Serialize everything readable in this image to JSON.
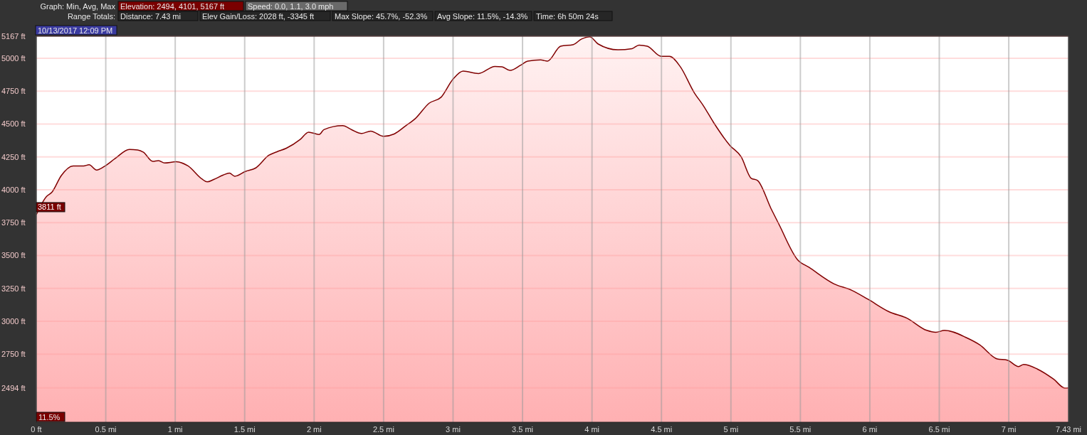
{
  "chart_data": {
    "type": "area",
    "annotations": [
      "Graph: Min, Avg, Max",
      "Elevation: 2494, 4101, 5167 ft",
      "Speed: 0.0, 1.1, 3.0 mph",
      "Range Totals:",
      "Distance: 7.43 mi",
      "Elev Gain/Loss: 2028 ft, -3345 ft",
      "Max Slope: 45.7%, -52.3%",
      "Avg Slope: 11.5%, -14.3%",
      "Time: 6h 50m 24s",
      "10/13/2017 12:09 PM",
      {
        "text": "3811 ft",
        "x": 0,
        "y": 3811
      },
      "11.5%"
    ],
    "x": [
      0,
      0.071,
      0.113,
      0.18,
      0.265,
      0.34,
      0.38,
      0.434,
      0.49,
      0.568,
      0.67,
      0.729,
      0.771,
      0.838,
      0.88,
      0.923,
      1.007,
      1.092,
      1.193,
      1.23,
      1.277,
      1.345,
      1.39,
      1.429,
      1.505,
      1.58,
      1.674,
      1.733,
      1.8,
      1.9,
      1.96,
      2.036,
      2.07,
      2.205,
      2.272,
      2.34,
      2.407,
      2.5,
      2.576,
      2.66,
      2.728,
      2.829,
      2.913,
      2.998,
      3.073,
      3.183,
      3.301,
      3.352,
      3.411,
      3.487,
      3.537,
      3.63,
      3.68,
      3.774,
      3.866,
      3.925,
      3.984,
      4.043,
      4.187,
      4.288,
      4.339,
      4.398,
      4.499,
      4.558,
      4.634,
      4.735,
      4.803,
      4.875,
      4.992,
      5.074,
      5.146,
      5.191,
      5.29,
      5.345,
      5.48,
      5.563,
      5.742,
      5.869,
      5.986,
      6.14,
      6.267,
      6.41,
      6.475,
      6.538,
      6.7,
      6.791,
      6.917,
      6.99,
      7.071,
      7.107,
      7.206,
      7.323,
      7.405,
      7.43
    ],
    "series": [
      {
        "color": "#800000",
        "values": [
          3811,
          3946,
          3982,
          4108,
          4181,
          4181,
          4190,
          4150,
          4177,
          4238,
          4307,
          4303,
          4285,
          4216,
          4222,
          4204,
          4213,
          4181,
          4081,
          4060,
          4078,
          4112,
          4127,
          4103,
          4139,
          4166,
          4262,
          4289,
          4316,
          4383,
          4438,
          4420,
          4457,
          4487,
          4455,
          4428,
          4446,
          4406,
          4424,
          4487,
          4541,
          4659,
          4703,
          4839,
          4902,
          4884,
          4938,
          4935,
          4907,
          4947,
          4978,
          4987,
          4978,
          5091,
          5104,
          5146,
          5163,
          5109,
          5064,
          5073,
          5100,
          5091,
          5014,
          5014,
          4938,
          4740,
          4637,
          4512,
          4338,
          4250,
          4087,
          4071,
          3854,
          3739,
          3468,
          3410,
          3285,
          3236,
          3168,
          3072,
          3024,
          2931,
          2917,
          2931,
          2873,
          2821,
          2714,
          2705,
          2656,
          2672,
          2637,
          2560,
          2492,
          2494
        ]
      }
    ],
    "xlim": [
      0,
      7.43
    ],
    "xticks": [
      {
        "value": 0,
        "label": "0 ft"
      },
      {
        "value": 0.5,
        "label": "0.5 mi"
      },
      {
        "value": 1,
        "label": "1 mi"
      },
      {
        "value": 1.5,
        "label": "1.5 mi"
      },
      {
        "value": 2,
        "label": "2 mi"
      },
      {
        "value": 2.5,
        "label": "2.5 mi"
      },
      {
        "value": 3,
        "label": "3 mi"
      },
      {
        "value": 3.5,
        "label": "3.5 mi"
      },
      {
        "value": 4,
        "label": "4 mi"
      },
      {
        "value": 4.5,
        "label": "4.5 mi"
      },
      {
        "value": 5,
        "label": "5 mi"
      },
      {
        "value": 5.5,
        "label": "5.5 mi"
      },
      {
        "value": 6,
        "label": "6 mi"
      },
      {
        "value": 6.5,
        "label": "6.5 mi"
      },
      {
        "value": 7,
        "label": "7 mi"
      },
      {
        "value": 7.43,
        "label": "7.43 mi"
      }
    ],
    "ylim": [
      2233,
      5167
    ],
    "yticks": [
      {
        "value": 2494,
        "label": "2494 ft"
      },
      {
        "value": 2750,
        "label": "2750 ft"
      },
      {
        "value": 3000,
        "label": "3000 ft"
      },
      {
        "value": 3250,
        "label": "3250 ft"
      },
      {
        "value": 3500,
        "label": "3500 ft"
      },
      {
        "value": 3750,
        "label": "3750 ft"
      },
      {
        "value": 4000,
        "label": "4000 ft"
      },
      {
        "value": 4250,
        "label": "4250 ft"
      },
      {
        "value": 4500,
        "label": "4500 ft"
      },
      {
        "value": 4750,
        "label": "4750 ft"
      },
      {
        "value": 5000,
        "label": "5000 ft"
      },
      {
        "value": 5167,
        "label": "5167 ft"
      }
    ],
    "grid": true
  }
}
